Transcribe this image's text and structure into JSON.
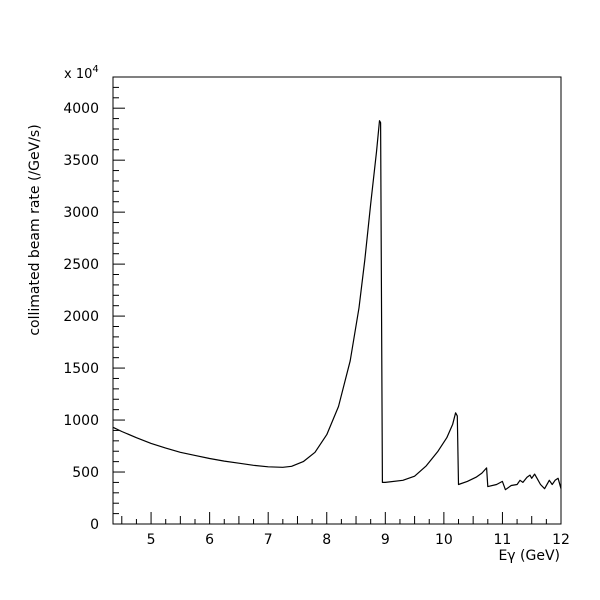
{
  "chart_data": {
    "type": "line",
    "xlabel": "Eγ (GeV)",
    "ylabel": "collimated beam rate (/GeV/s)",
    "y_multiplier": "x 10",
    "y_multiplier_exp": "4",
    "xlim": [
      4.35,
      12
    ],
    "ylim": [
      0,
      4300
    ],
    "xticks": [
      5,
      6,
      7,
      8,
      9,
      10,
      11,
      12
    ],
    "yticks": [
      0,
      500,
      1000,
      1500,
      2000,
      2500,
      3000,
      3500,
      4000
    ],
    "grid": false,
    "series": [
      {
        "color": "#000000",
        "points": [
          [
            4.35,
            930
          ],
          [
            4.5,
            890
          ],
          [
            4.75,
            830
          ],
          [
            5.0,
            775
          ],
          [
            5.25,
            730
          ],
          [
            5.5,
            690
          ],
          [
            5.75,
            660
          ],
          [
            6.0,
            630
          ],
          [
            6.25,
            605
          ],
          [
            6.5,
            585
          ],
          [
            6.75,
            565
          ],
          [
            7.0,
            550
          ],
          [
            7.25,
            545
          ],
          [
            7.4,
            555
          ],
          [
            7.6,
            600
          ],
          [
            7.8,
            690
          ],
          [
            8.0,
            860
          ],
          [
            8.2,
            1130
          ],
          [
            8.4,
            1570
          ],
          [
            8.55,
            2080
          ],
          [
            8.65,
            2540
          ],
          [
            8.75,
            3080
          ],
          [
            8.85,
            3580
          ],
          [
            8.9,
            3880
          ],
          [
            8.92,
            3860
          ],
          [
            8.95,
            400
          ],
          [
            9.0,
            400
          ],
          [
            9.3,
            420
          ],
          [
            9.5,
            460
          ],
          [
            9.7,
            560
          ],
          [
            9.9,
            700
          ],
          [
            10.05,
            830
          ],
          [
            10.15,
            960
          ],
          [
            10.2,
            1070
          ],
          [
            10.23,
            1040
          ],
          [
            10.25,
            380
          ],
          [
            10.4,
            410
          ],
          [
            10.55,
            450
          ],
          [
            10.65,
            490
          ],
          [
            10.73,
            540
          ],
          [
            10.75,
            360
          ],
          [
            10.9,
            380
          ],
          [
            11.0,
            410
          ],
          [
            11.05,
            330
          ],
          [
            11.15,
            370
          ],
          [
            11.25,
            380
          ],
          [
            11.3,
            420
          ],
          [
            11.35,
            400
          ],
          [
            11.42,
            450
          ],
          [
            11.47,
            470
          ],
          [
            11.5,
            440
          ],
          [
            11.55,
            480
          ],
          [
            11.6,
            430
          ],
          [
            11.65,
            380
          ],
          [
            11.72,
            340
          ],
          [
            11.8,
            420
          ],
          [
            11.85,
            380
          ],
          [
            11.9,
            420
          ],
          [
            11.95,
            440
          ],
          [
            12.0,
            340
          ]
        ]
      }
    ]
  }
}
